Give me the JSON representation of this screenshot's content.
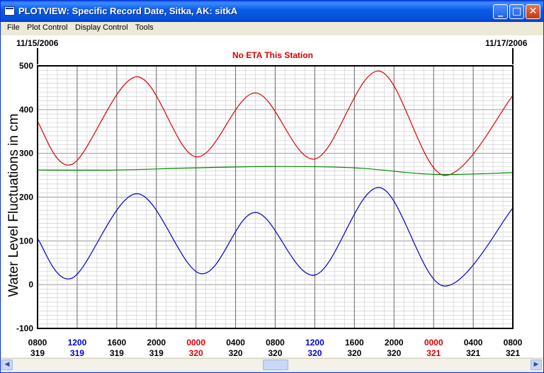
{
  "window": {
    "title": "PLOTVIEW: Specific Record Date, Sitka, AK: sitkA",
    "buttons": {
      "minimize": "_",
      "maximize": "□",
      "close": "✕"
    }
  },
  "menu": [
    "File",
    "Plot Control",
    "Display Control",
    "Tools"
  ],
  "plot": {
    "start_date": "11/15/2006",
    "end_date": "11/17/2006",
    "status": "No ETA This Station",
    "ylabel": "Water Level Fluctuations in cm"
  },
  "colors": {
    "red": "#dd0000",
    "green": "#008800",
    "blue": "#0000cc",
    "blue_label": "#0000cc",
    "red_label": "#dd0000"
  },
  "chart_data": {
    "type": "line",
    "ylabel": "Water Level Fluctuations in cm",
    "ylim": [
      -100,
      500
    ],
    "yticks": [
      -100,
      0,
      100,
      200,
      300,
      400,
      500
    ],
    "xlim_hours": [
      0,
      48
    ],
    "grid": true,
    "x_ticks": [
      {
        "time": "0800",
        "day": "319",
        "color": "black"
      },
      {
        "time": "1200",
        "day": "319",
        "color": "blue"
      },
      {
        "time": "1600",
        "day": "319",
        "color": "black"
      },
      {
        "time": "2000",
        "day": "319",
        "color": "black"
      },
      {
        "time": "0000",
        "day": "320",
        "color": "red"
      },
      {
        "time": "0400",
        "day": "320",
        "color": "black"
      },
      {
        "time": "0800",
        "day": "320",
        "color": "black"
      },
      {
        "time": "1200",
        "day": "320",
        "color": "blue"
      },
      {
        "time": "1600",
        "day": "320",
        "color": "black"
      },
      {
        "time": "2000",
        "day": "320",
        "color": "black"
      },
      {
        "time": "0000",
        "day": "321",
        "color": "red"
      },
      {
        "time": "0400",
        "day": "321",
        "color": "black"
      },
      {
        "time": "0800",
        "day": "321",
        "color": "black"
      }
    ],
    "series": [
      {
        "color": "#dd0000",
        "x": [
          0,
          3.5,
          10,
          16,
          22,
          28,
          34.5,
          41,
          48
        ],
        "y": [
          372,
          275,
          475,
          292,
          438,
          287,
          488,
          250,
          432
        ]
      },
      {
        "color": "#008800",
        "x": [
          0,
          8,
          16,
          24,
          32,
          40,
          48
        ],
        "y": [
          262,
          262,
          267,
          270,
          267,
          252,
          256
        ]
      },
      {
        "color": "#0000cc",
        "x": [
          0,
          3.5,
          10,
          16.5,
          22,
          28,
          34.5,
          41,
          48
        ],
        "y": [
          105,
          15,
          208,
          25,
          165,
          22,
          222,
          -3,
          175
        ]
      }
    ]
  }
}
